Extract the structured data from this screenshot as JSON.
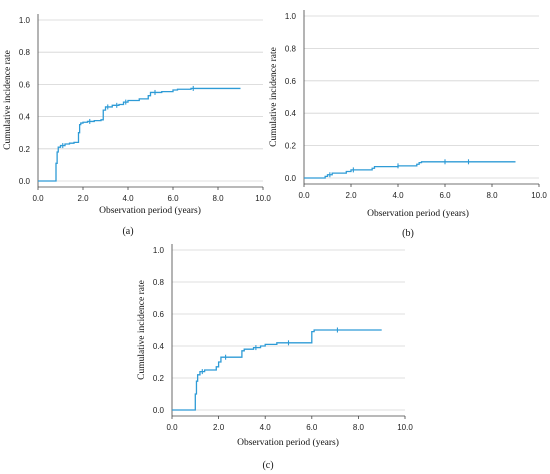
{
  "chart_data": [
    {
      "type": "line",
      "panel_label": "(a)",
      "xlabel": "Observation period (years)",
      "ylabel": "Cumulative incidence rate",
      "xlim": [
        0,
        10
      ],
      "ylim": [
        0,
        1
      ],
      "xticks": [
        "0.0",
        "2.0",
        "4.0",
        "6.0",
        "8.0",
        "10.0"
      ],
      "yticks": [
        "0.0",
        "0.2",
        "0.4",
        "0.6",
        "0.8",
        "1.0"
      ],
      "grid": "horizontal",
      "color": "#2e9bd6",
      "series": [
        {
          "x": [
            0,
            0.8,
            0.8,
            0.85,
            0.9,
            1.0,
            1.2,
            1.4,
            1.6,
            1.8,
            1.85,
            1.9,
            2.0,
            2.2,
            2.5,
            2.8,
            2.9,
            3.0,
            3.3,
            3.6,
            3.8,
            4.0,
            4.5,
            4.9,
            5.0,
            5.5,
            6.0,
            6.2,
            6.8,
            7.0,
            9.0
          ],
          "y": [
            0,
            0,
            0.11,
            0.18,
            0.21,
            0.22,
            0.23,
            0.235,
            0.24,
            0.3,
            0.35,
            0.36,
            0.365,
            0.37,
            0.375,
            0.38,
            0.44,
            0.46,
            0.47,
            0.475,
            0.49,
            0.5,
            0.51,
            0.53,
            0.55,
            0.555,
            0.565,
            0.57,
            0.575,
            0.575,
            0.575
          ]
        }
      ],
      "censor_x": [
        1.1,
        2.3,
        3.1,
        3.5,
        3.9,
        5.2,
        6.9
      ]
    },
    {
      "type": "line",
      "panel_label": "(b)",
      "xlabel": "Observation period (years)",
      "ylabel": "Cumulative incidence rate",
      "xlim": [
        0,
        10
      ],
      "ylim": [
        0,
        1
      ],
      "xticks": [
        "0.0",
        "2.0",
        "4.0",
        "6.0",
        "8.0",
        "10.0"
      ],
      "yticks": [
        "0.0",
        "0.2",
        "0.4",
        "0.6",
        "0.8",
        "1.0"
      ],
      "grid": "horizontal",
      "color": "#2e9bd6",
      "series": [
        {
          "x": [
            0,
            0.9,
            0.9,
            1.0,
            1.2,
            1.8,
            2.0,
            2.9,
            3.0,
            4.0,
            4.8,
            4.9,
            5.0,
            9.0
          ],
          "y": [
            0,
            0,
            0.01,
            0.02,
            0.03,
            0.04,
            0.05,
            0.06,
            0.07,
            0.075,
            0.085,
            0.095,
            0.1,
            0.1
          ]
        }
      ],
      "censor_x": [
        1.1,
        2.1,
        4.0,
        6.0,
        7.0
      ]
    },
    {
      "type": "line",
      "panel_label": "(c)",
      "xlabel": "Observation period (years)",
      "ylabel": "Cumulative incidence rate",
      "xlim": [
        0,
        10
      ],
      "ylim": [
        0,
        1
      ],
      "xticks": [
        "0.0",
        "2.0",
        "4.0",
        "6.0",
        "8.0",
        "10.0"
      ],
      "yticks": [
        "0.0",
        "0.2",
        "0.4",
        "0.6",
        "0.8",
        "1.0"
      ],
      "grid": "horizontal",
      "color": "#2e9bd6",
      "series": [
        {
          "x": [
            0,
            1.0,
            1.0,
            1.05,
            1.1,
            1.2,
            1.4,
            1.7,
            1.9,
            2.0,
            2.1,
            2.5,
            3.0,
            3.1,
            3.5,
            3.8,
            4.0,
            4.5,
            6.0,
            6.1,
            9.0
          ],
          "y": [
            0,
            0,
            0.1,
            0.18,
            0.22,
            0.24,
            0.25,
            0.25,
            0.27,
            0.3,
            0.33,
            0.33,
            0.37,
            0.38,
            0.39,
            0.4,
            0.41,
            0.42,
            0.49,
            0.5,
            0.5
          ]
        }
      ],
      "censor_x": [
        1.3,
        2.3,
        3.6,
        5.0,
        7.1
      ]
    }
  ]
}
